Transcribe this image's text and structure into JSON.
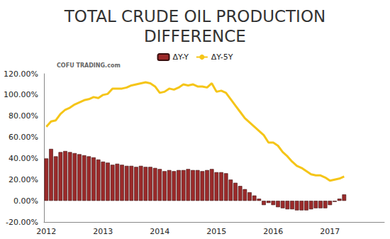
{
  "chart_data": {
    "type": "bar",
    "title": "TOTAL CRUDE OIL PRODUCTION\nDIFFERENCE",
    "annotation": "COFU TRADING.com",
    "categories": [
      "2012",
      null,
      null,
      null,
      null,
      null,
      null,
      null,
      null,
      null,
      null,
      null,
      "2013",
      null,
      null,
      null,
      null,
      null,
      null,
      null,
      null,
      null,
      null,
      null,
      "2014",
      null,
      null,
      null,
      null,
      null,
      null,
      null,
      null,
      null,
      null,
      null,
      "2015",
      null,
      null,
      null,
      null,
      null,
      null,
      null,
      null,
      null,
      null,
      null,
      "2016",
      null,
      null,
      null,
      null,
      null,
      null,
      null,
      null,
      null,
      null,
      null,
      "2017",
      null,
      null,
      null,
      null,
      null,
      null,
      null,
      null,
      null,
      null,
      null
    ],
    "series": [
      {
        "name": "ΔY-Y",
        "type": "bar",
        "color": "#9b2a2a",
        "values": [
          40,
          49,
          42,
          46,
          47,
          46,
          45,
          44,
          43,
          42,
          41,
          39,
          37,
          36,
          34,
          35,
          34,
          33,
          33,
          32,
          33,
          32,
          32,
          31,
          30,
          28,
          29,
          28,
          29,
          29,
          30,
          29,
          29,
          28,
          29,
          30,
          27,
          27,
          26,
          20,
          17,
          14,
          11,
          8,
          5,
          2,
          -4,
          -2,
          -4,
          -6,
          -7,
          -8,
          -8,
          -9,
          -9,
          -9,
          -8,
          -7,
          -7,
          -7,
          -4,
          -1,
          2,
          6,
          null,
          null,
          null,
          null,
          null,
          null,
          null,
          null
        ]
      },
      {
        "name": "ΔY-5Y",
        "type": "line",
        "color": "#f5c518",
        "values": [
          70,
          75,
          76,
          82,
          86,
          88,
          91,
          93,
          95,
          96,
          98,
          97,
          100,
          101,
          106,
          106,
          106,
          107,
          109,
          110,
          111,
          112,
          111,
          108,
          102,
          103,
          106,
          105,
          107,
          110,
          109,
          110,
          108,
          108,
          107,
          111,
          103,
          104,
          102,
          96,
          90,
          84,
          78,
          74,
          70,
          66,
          62,
          55,
          55,
          52,
          46,
          42,
          37,
          33,
          31,
          28,
          25,
          24,
          24,
          22,
          19,
          20,
          21,
          23,
          null,
          null,
          null,
          null,
          null,
          null,
          null,
          null
        ]
      }
    ],
    "ylim": [
      -20,
      120
    ],
    "yticks": [
      {
        "value": -20,
        "label": "-20.00%"
      },
      {
        "value": 0,
        "label": "0.00%"
      },
      {
        "value": 20,
        "label": "20.00%"
      },
      {
        "value": 40,
        "label": "40.00%"
      },
      {
        "value": 60,
        "label": "60.00%"
      },
      {
        "value": 80,
        "label": "80.00%"
      },
      {
        "value": 100,
        "label": "100.00%"
      },
      {
        "value": 120,
        "label": "120.00%"
      }
    ],
    "grid": false,
    "legend": "top"
  }
}
